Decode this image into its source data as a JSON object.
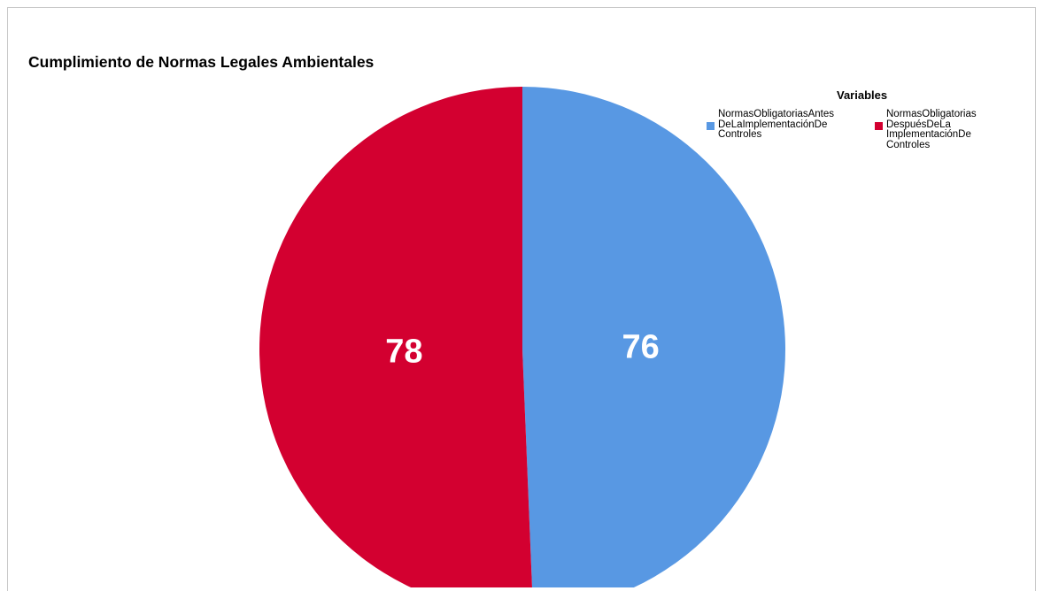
{
  "chart_data": {
    "type": "pie",
    "title": "Cumplimiento de Normas Legales Ambientales",
    "legend_title": "Variables",
    "legend_placement": "top-right",
    "slices": [
      {
        "name": "NormasObligatoriasAntesDeLaImplementaciónDeControles",
        "legend_lines": [
          "NormasObligatoriasAntes",
          "DeLaImplementaciónDe",
          "Controles"
        ],
        "value": 76,
        "color": "#5898e3"
      },
      {
        "name": "NormasObligatoriasDespuésDeLaImplementaciónDeControles",
        "legend_lines": [
          "NormasObligatorias",
          "DespuésDeLa",
          "ImplementaciónDe",
          "Controles"
        ],
        "value": 78,
        "color": "#d30030"
      }
    ]
  }
}
